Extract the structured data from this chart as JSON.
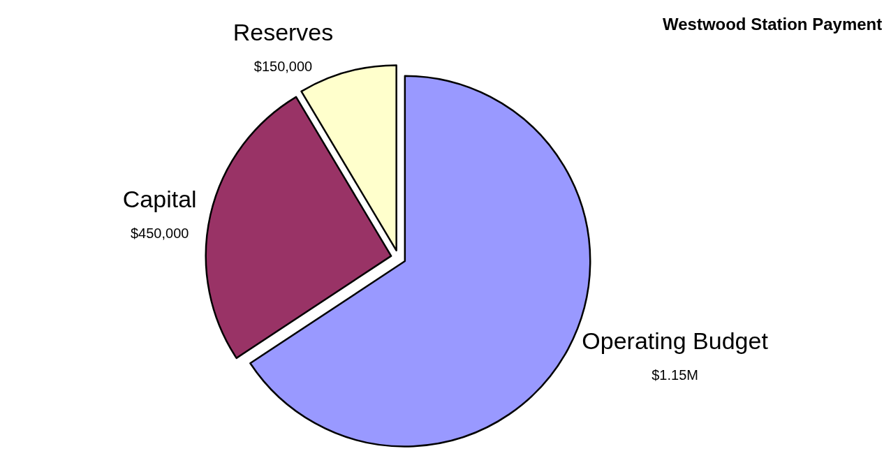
{
  "chart_data": {
    "type": "pie",
    "title": "Westwood Station Payment",
    "categories": [
      "Operating Budget",
      "Capital",
      "Reserves"
    ],
    "values": [
      1150000,
      450000,
      150000
    ],
    "value_labels": [
      "$1.15M",
      "$450,000",
      "$150,000"
    ],
    "colors": [
      "#9999ff",
      "#993366",
      "#ffffcc"
    ],
    "legend": false
  }
}
